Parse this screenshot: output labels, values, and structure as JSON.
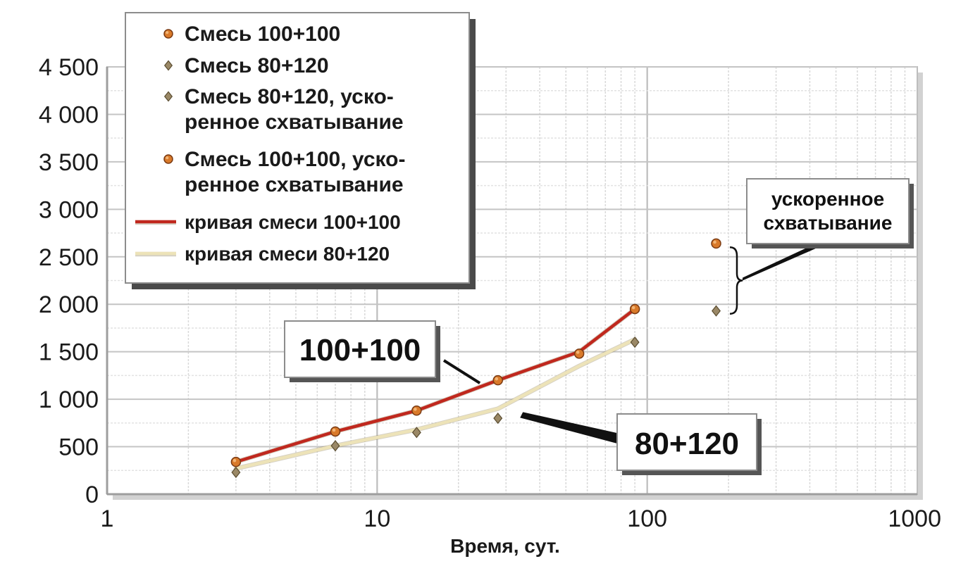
{
  "chart_data": {
    "type": "line",
    "title": "",
    "xlabel": "Время, сут.",
    "ylabel": "",
    "x_scale": "log",
    "xlim": [
      1,
      1000
    ],
    "ylim": [
      0,
      4500
    ],
    "x_ticks": [
      {
        "value": 1,
        "label": "1"
      },
      {
        "value": 10,
        "label": "10"
      },
      {
        "value": 100,
        "label": "100"
      },
      {
        "value": 1000,
        "label": "1000"
      }
    ],
    "y_ticks": [
      {
        "value": 0,
        "label": "0"
      },
      {
        "value": 500,
        "label": "500"
      },
      {
        "value": 1000,
        "label": "1 000"
      },
      {
        "value": 1500,
        "label": "1 500"
      },
      {
        "value": 2000,
        "label": "2 000"
      },
      {
        "value": 2500,
        "label": "2 500"
      },
      {
        "value": 3000,
        "label": "3 000"
      },
      {
        "value": 3500,
        "label": "3 500"
      },
      {
        "value": 4000,
        "label": "4 000"
      },
      {
        "value": 4500,
        "label": "4 500"
      }
    ],
    "grid": true,
    "legend_position": "top-left",
    "series": [
      {
        "name": "Смесь 100+100",
        "kind": "points",
        "marker": "circle",
        "color": "#d97a2a",
        "x": [
          3,
          7,
          14,
          28,
          56,
          90
        ],
        "y": [
          340,
          660,
          880,
          1200,
          1480,
          1950
        ]
      },
      {
        "name": "Смесь 80+120",
        "kind": "points",
        "marker": "diamond",
        "color": "#9a8866",
        "x": [
          3,
          7,
          14,
          28,
          90
        ],
        "y": [
          230,
          510,
          650,
          800,
          1600
        ]
      },
      {
        "name": "Смесь 80+120, уско-\nренное схватывание",
        "kind": "points",
        "marker": "diamond",
        "color": "#9a8866",
        "x": [
          180
        ],
        "y": [
          1930
        ]
      },
      {
        "name": "Смесь 100+100, уско-\nренное схватывание",
        "kind": "points",
        "marker": "circle",
        "color": "#d97a2a",
        "x": [
          180
        ],
        "y": [
          2640
        ]
      },
      {
        "name": "кривая смеси 100+100",
        "kind": "line",
        "color": "#c0281e",
        "x": [
          3,
          7,
          14,
          28,
          56,
          90
        ],
        "y": [
          340,
          660,
          880,
          1200,
          1500,
          1950
        ]
      },
      {
        "name": "кривая смеси 80+120",
        "kind": "line",
        "color": "#ede3b8",
        "x": [
          3,
          7,
          14,
          28,
          56,
          90
        ],
        "y": [
          270,
          510,
          680,
          900,
          1350,
          1630
        ]
      }
    ],
    "annotations": [
      {
        "text": "100+100"
      },
      {
        "text": "80+120"
      },
      {
        "text": "ускоренное\nсхватывание"
      }
    ]
  }
}
